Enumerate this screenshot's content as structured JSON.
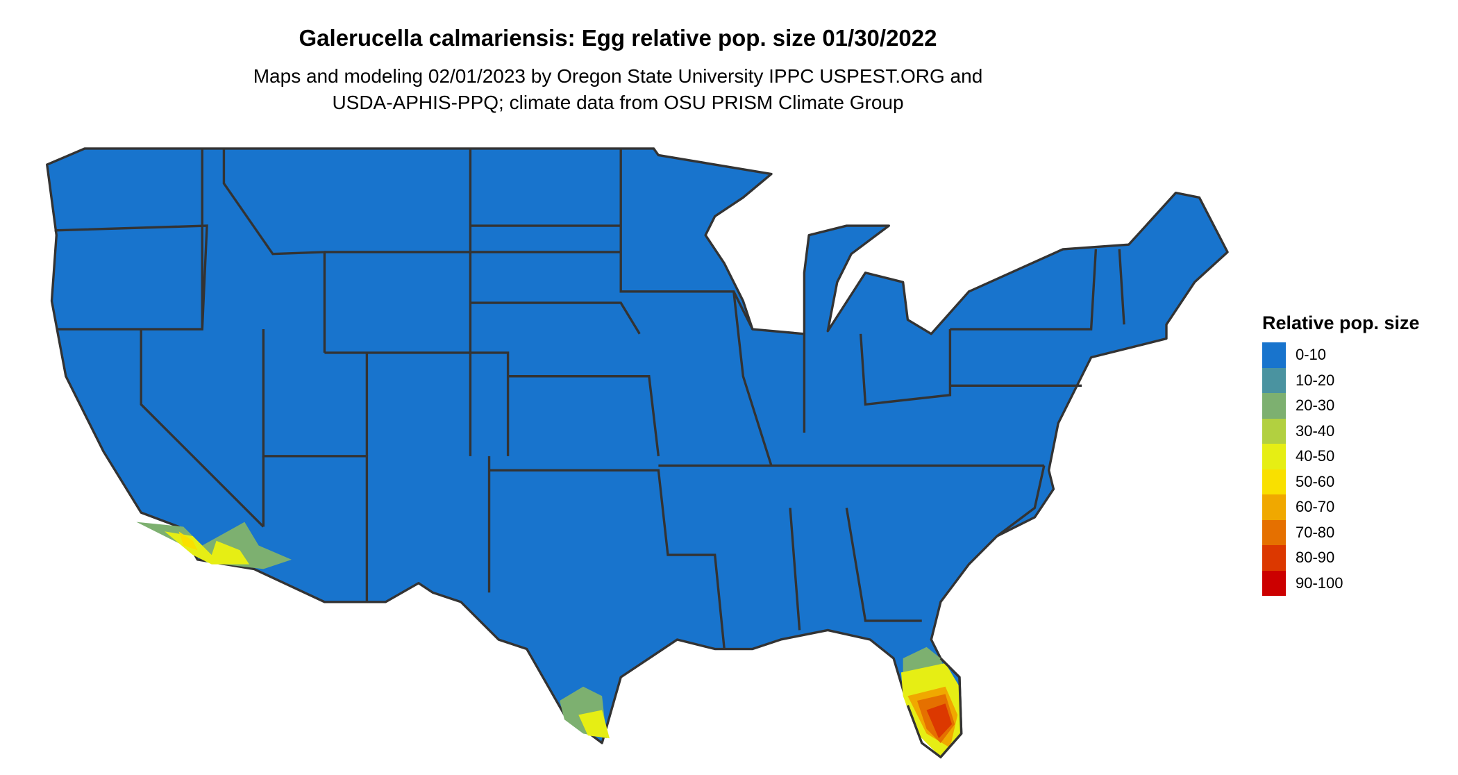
{
  "title": "Galerucella calmariensis: Egg relative pop. size 01/30/2022",
  "subtitle_line1": "Maps and modeling 02/01/2023 by Oregon State University IPPC USPEST.ORG and",
  "subtitle_line2": "USDA-APHIS-PPQ; climate data from OSU PRISM Climate Group",
  "legend": {
    "title": "Relative pop. size",
    "items": [
      {
        "label": "0-10",
        "color": "#1874CD"
      },
      {
        "label": "10-20",
        "color": "#4A93A0"
      },
      {
        "label": "20-30",
        "color": "#7DB070"
      },
      {
        "label": "30-40",
        "color": "#B2D040"
      },
      {
        "label": "40-50",
        "color": "#E6EE14"
      },
      {
        "label": "50-60",
        "color": "#F9E000"
      },
      {
        "label": "60-70",
        "color": "#F0A800"
      },
      {
        "label": "70-80",
        "color": "#E57000"
      },
      {
        "label": "80-90",
        "color": "#DC3800"
      },
      {
        "label": "90-100",
        "color": "#CC0000"
      }
    ]
  },
  "map": {
    "region": "Contiguous United States",
    "dominant_class": "0-10",
    "hotspots": [
      {
        "area": "Southern California coast",
        "classes": [
          "20-30",
          "40-50",
          "50-60"
        ]
      },
      {
        "area": "Southern Texas",
        "classes": [
          "20-30",
          "40-50"
        ]
      },
      {
        "area": "Southern Florida",
        "classes": [
          "20-30",
          "40-50",
          "60-70",
          "70-80",
          "80-90"
        ]
      }
    ]
  }
}
